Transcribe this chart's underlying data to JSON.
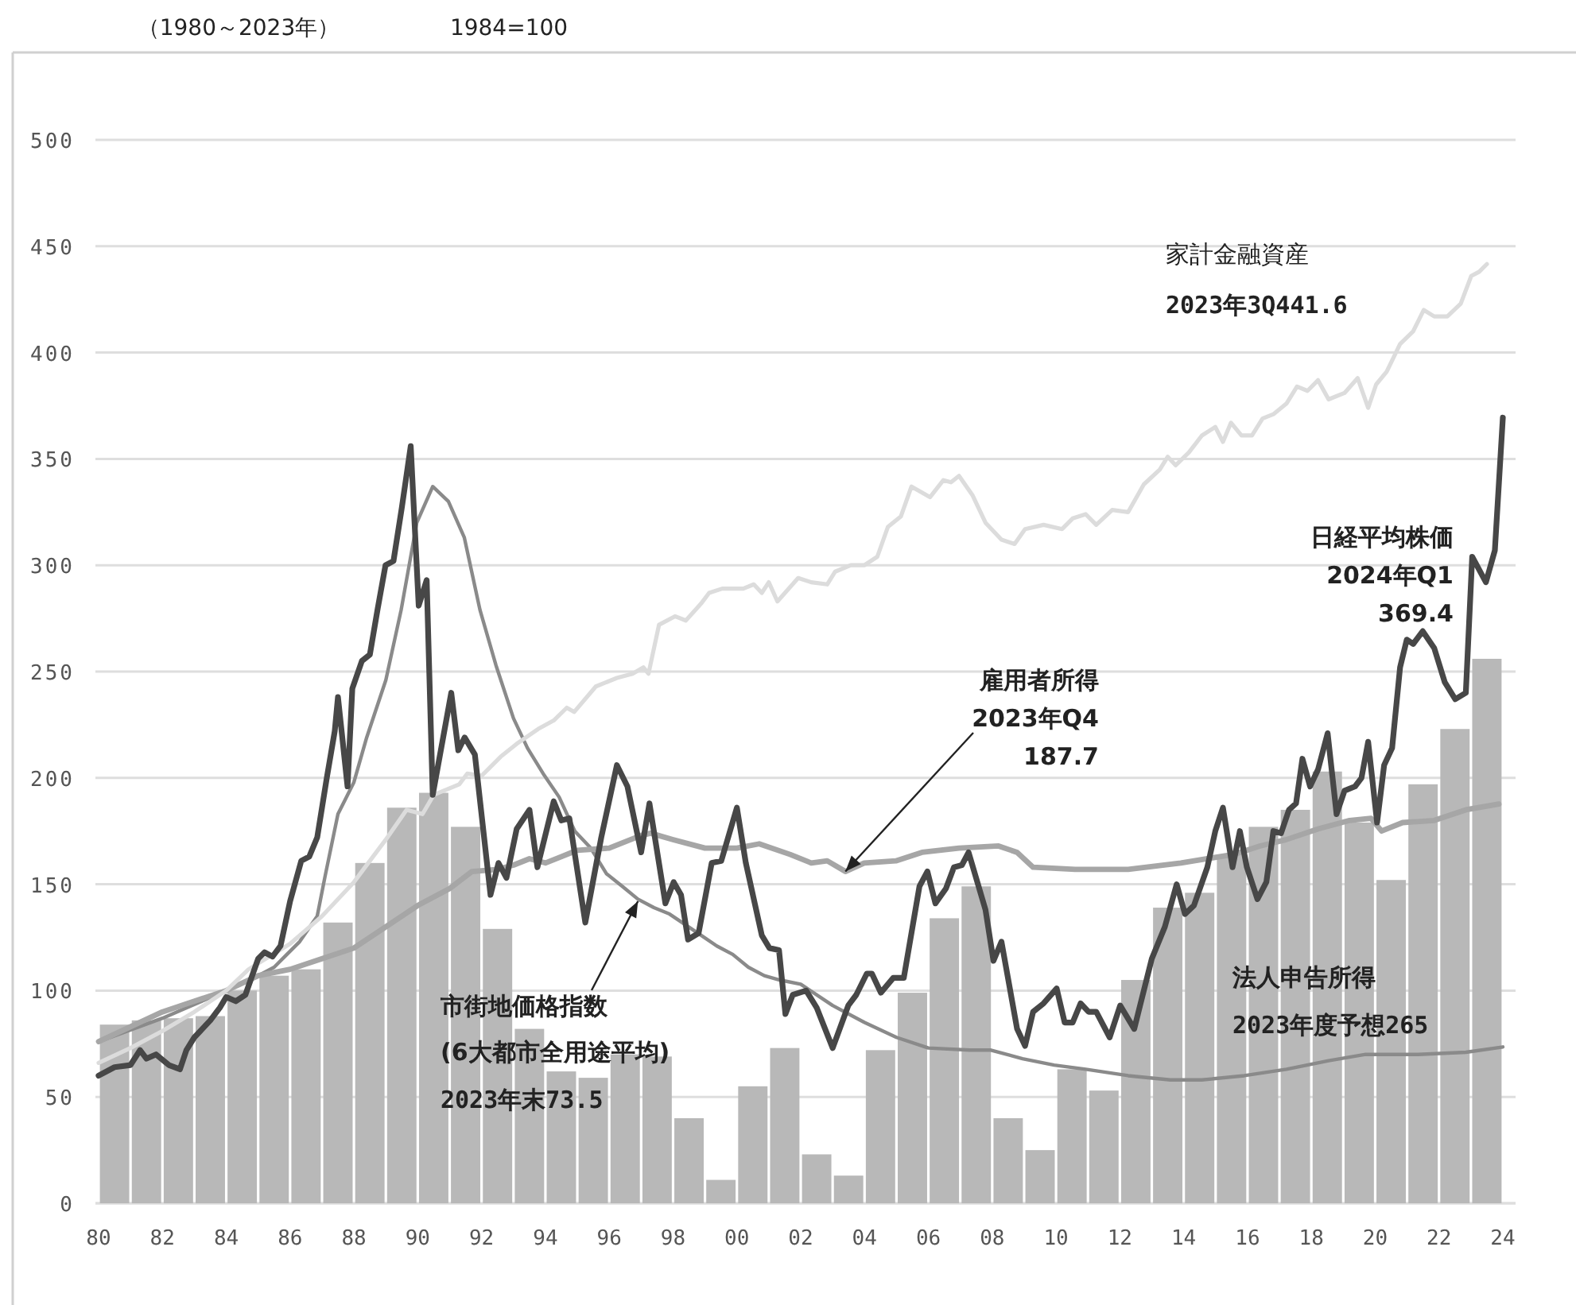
{
  "chart_data": {
    "type": "line",
    "title": "（1980～2023年）",
    "ylabel": "1984=100",
    "xlim": [
      1980,
      2024
    ],
    "ylim": [
      0,
      500
    ],
    "xticks": [
      {
        "value": 1980,
        "label": "80"
      },
      {
        "value": 1982,
        "label": "82"
      },
      {
        "value": 1984,
        "label": "84"
      },
      {
        "value": 1986,
        "label": "86"
      },
      {
        "value": 1988,
        "label": "88"
      },
      {
        "value": 1990,
        "label": "90"
      },
      {
        "value": 1992,
        "label": "92"
      },
      {
        "value": 1994,
        "label": "94"
      },
      {
        "value": 1996,
        "label": "96"
      },
      {
        "value": 1998,
        "label": "98"
      },
      {
        "value": 2000,
        "label": "00"
      },
      {
        "value": 2002,
        "label": "02"
      },
      {
        "value": 2004,
        "label": "04"
      },
      {
        "value": 2006,
        "label": "06"
      },
      {
        "value": 2008,
        "label": "08"
      },
      {
        "value": 2010,
        "label": "10"
      },
      {
        "value": 2012,
        "label": "12"
      },
      {
        "value": 2014,
        "label": "14"
      },
      {
        "value": 2016,
        "label": "16"
      },
      {
        "value": 2018,
        "label": "18"
      },
      {
        "value": 2020,
        "label": "20"
      },
      {
        "value": 2022,
        "label": "22"
      },
      {
        "value": 2024,
        "label": "24"
      }
    ],
    "yticks": [
      0,
      50,
      100,
      150,
      200,
      250,
      300,
      350,
      400,
      450,
      500
    ],
    "grid": "y",
    "series": [
      {
        "type": "bar",
        "color": "#b8b8b8",
        "x": [
          1980.5,
          1981.5,
          1982.5,
          1983.5,
          1984.5,
          1985.5,
          1986.5,
          1987.5,
          1988.5,
          1989.5,
          1990.5,
          1991.5,
          1992.5,
          1993.5,
          1994.5,
          1995.5,
          1996.5,
          1997.5,
          1998.5,
          1999.5,
          2000.5,
          2001.5,
          2002.5,
          2003.5,
          2004.5,
          2005.5,
          2006.5,
          2007.5,
          2008.5,
          2009.5,
          2010.5,
          2011.5,
          2012.5,
          2013.5,
          2014.5,
          2015.5,
          2016.5,
          2017.5,
          2018.5,
          2019.5,
          2020.5,
          2021.5,
          2022.5,
          2023.5
        ],
        "values": [
          84,
          86,
          87,
          88,
          100,
          107,
          110,
          132,
          160,
          186,
          193,
          177,
          129,
          82,
          62,
          59,
          70,
          69,
          40,
          11,
          55,
          73,
          23,
          13,
          72,
          99,
          134,
          149,
          40,
          25,
          63,
          53,
          105,
          139,
          146,
          164,
          177,
          185,
          203,
          179,
          152,
          197,
          223,
          256
        ]
      },
      {
        "color": "#8a8a8a",
        "x": [
          1980,
          1982,
          1984,
          1985,
          1985.5,
          1985.9,
          1986.3,
          1986.85,
          1987.1,
          1987.5,
          1988,
          1988.4,
          1989,
          1989.48,
          1989.97,
          1990.47,
          1990.96,
          1991.46,
          1991.95,
          1992.45,
          1993,
          1993.44,
          1993.93,
          1994.43,
          1994.92,
          1995.42,
          1995.91,
          1996.41,
          1996.9,
          1997.4,
          1997.89,
          1998.38,
          1998.88,
          1999.37,
          1999.87,
          2000.36,
          2000.86,
          2001.34,
          2002,
          2003,
          2004,
          2005,
          2006,
          2007.3,
          2007.96,
          2008.95,
          2009.94,
          2010.93,
          2012.26,
          2013.58,
          2014.57,
          2015.9,
          2017.22,
          2018.54,
          2019.7,
          2021.35,
          2022.84,
          2024
        ],
        "values": [
          76,
          87,
          100,
          107,
          111,
          117,
          123,
          135,
          154,
          183,
          198,
          219,
          246,
          279,
          320,
          337,
          330,
          313,
          279,
          253,
          228,
          214,
          202,
          191,
          175,
          167,
          155,
          149,
          143,
          139,
          136,
          131,
          126,
          121,
          117,
          111,
          107,
          105,
          103,
          93,
          85,
          78,
          73,
          72,
          72,
          68,
          65,
          63,
          60,
          58,
          58,
          60,
          63,
          67,
          70,
          70,
          71,
          73.5
        ]
      },
      {
        "color": "#a6a6a6",
        "x": [
          1980,
          1982,
          1983,
          1984,
          1985,
          1986,
          1987,
          1988,
          1989,
          1990,
          1991,
          1991.7,
          1992.5,
          1993,
          1993.5,
          1994,
          1994.5,
          1995,
          1996,
          1997,
          1997.3,
          1998,
          1999,
          2000,
          2000.7,
          2001.67,
          2002.33,
          2002.83,
          2003.4,
          2003.99,
          2004.98,
          2005.8,
          2006.96,
          2008.2,
          2008.78,
          2009.28,
          2010.6,
          2012.26,
          2013.91,
          2014.74,
          2015.56,
          2016.39,
          2017.22,
          2018.21,
          2019.2,
          2019.87,
          2020.2,
          2020.86,
          2021.85,
          2022.84,
          2023.875
        ],
        "values": [
          76,
          90,
          95,
          100,
          107,
          110,
          115,
          120,
          130,
          140,
          148,
          156,
          157,
          159,
          162,
          160,
          163,
          166,
          167,
          173,
          174,
          171,
          167,
          167,
          169,
          164,
          160,
          161,
          156,
          160,
          161,
          165,
          167,
          168,
          165,
          158,
          157,
          157,
          160,
          162,
          164,
          168,
          171,
          176,
          180,
          181,
          175,
          179,
          180,
          185,
          187.7
        ]
      },
      {
        "color": "#dcdcdc",
        "x": [
          1980,
          1981,
          1982,
          1983,
          1984,
          1984.7,
          1986,
          1987,
          1988,
          1989,
          1989.65,
          1990.15,
          1990.5,
          1991.3,
          1991.55,
          1992,
          1992.6,
          1993.1,
          1993.77,
          1994.26,
          1994.67,
          1994.9,
          1995.58,
          1996.24,
          1996.73,
          1997.07,
          1997.23,
          1997.56,
          1998.06,
          1998.4,
          1998.88,
          1999.13,
          1999.54,
          2000.2,
          2000.53,
          2000.78,
          2001.0,
          2001.27,
          2001.92,
          2002.33,
          2002.83,
          2003.08,
          2003.57,
          2003.99,
          2004.4,
          2004.73,
          2005.14,
          2005.47,
          2006.05,
          2006.47,
          2006.71,
          2006.96,
          2007.38,
          2007.79,
          2008.29,
          2008.7,
          2009.03,
          2009.61,
          2010.19,
          2010.52,
          2010.93,
          2011.26,
          2011.76,
          2012.26,
          2012.75,
          2013.25,
          2013.5,
          2013.75,
          2014.16,
          2014.57,
          2014.99,
          2015.23,
          2015.48,
          2015.81,
          2016.14,
          2016.47,
          2016.81,
          2017.22,
          2017.55,
          2017.88,
          2018.21,
          2018.54,
          2019.04,
          2019.45,
          2019.78,
          2020.03,
          2020.36,
          2020.78,
          2021.19,
          2021.52,
          2021.85,
          2022.26,
          2022.68,
          2023.01,
          2023.26,
          2023.5
        ],
        "values": [
          66,
          73,
          81,
          90,
          100,
          110,
          122,
          135,
          151,
          171,
          185,
          183,
          192,
          197,
          202,
          201,
          210,
          216,
          223,
          227,
          233,
          231,
          243,
          247,
          249,
          252,
          249,
          272,
          276,
          274,
          282,
          287,
          289,
          289,
          291,
          287,
          292,
          283,
          294,
          292,
          291,
          297,
          300,
          300,
          304,
          318,
          323,
          337,
          332,
          340,
          339,
          342,
          333,
          320,
          312,
          310,
          317,
          319,
          317,
          322,
          324,
          319,
          326,
          325,
          338,
          345,
          351,
          347,
          353,
          361,
          365,
          358,
          367,
          361,
          361,
          369,
          371,
          376,
          384,
          382,
          387,
          378,
          381,
          388,
          374,
          385,
          391,
          404,
          410,
          420,
          417,
          417,
          423,
          436,
          438,
          441.6
        ]
      },
      {
        "color": "#474747",
        "x": [
          1980,
          1980.5,
          1981,
          1981.3,
          1981.5,
          1981.8,
          1982.2,
          1982.55,
          1982.75,
          1983,
          1983.5,
          1983.8,
          1984,
          1984.3,
          1984.6,
          1985,
          1985.2,
          1985.45,
          1985.7,
          1986,
          1986.35,
          1986.6,
          1986.85,
          1987.15,
          1987.4,
          1987.5,
          1987.8,
          1987.95,
          1988.25,
          1988.5,
          1988.75,
          1988.99,
          1989.24,
          1989.5,
          1989.78,
          1990.03,
          1990.28,
          1990.47,
          1991.05,
          1991.27,
          1991.47,
          1991.79,
          1992.28,
          1992.53,
          1992.78,
          1993.1,
          1993.5,
          1993.75,
          1994.26,
          1994.5,
          1994.75,
          1995.25,
          1995.75,
          1996.24,
          1996.57,
          1997,
          1997.26,
          1997.76,
          1998.02,
          1998.25,
          1998.47,
          1998.8,
          1999.21,
          1999.51,
          2000,
          2000.28,
          2000.78,
          2001.02,
          2001.32,
          2001.52,
          2001.75,
          2002.17,
          2002.5,
          2003,
          2003.49,
          2003.74,
          2004.07,
          2004.23,
          2004.51,
          2004.9,
          2005.23,
          2005.72,
          2005.97,
          2006.22,
          2006.55,
          2006.8,
          2007.05,
          2007.26,
          2007.79,
          2008.04,
          2008.29,
          2008.78,
          2009.03,
          2009.28,
          2009.61,
          2010.02,
          2010.27,
          2010.52,
          2010.77,
          2011.02,
          2011.26,
          2011.68,
          2012.01,
          2012.45,
          2013,
          2013.41,
          2013.78,
          2014.04,
          2014.32,
          2014.74,
          2014.99,
          2015.23,
          2015.53,
          2015.76,
          2015.98,
          2016.31,
          2016.59,
          2016.81,
          2017.05,
          2017.3,
          2017.52,
          2017.72,
          2017.96,
          2018.21,
          2018.51,
          2018.79,
          2019.04,
          2019.37,
          2019.57,
          2019.78,
          2020.06,
          2020.28,
          2020.53,
          2020.78,
          2020.99,
          2021.19,
          2021.49,
          2021.85,
          2022.18,
          2022.51,
          2022.84,
          2023.04,
          2023.47,
          2023.75,
          2024
        ],
        "values": [
          60,
          64,
          65,
          72,
          68,
          70,
          65,
          63,
          72,
          78,
          86,
          92,
          97,
          95,
          98,
          115,
          118,
          116,
          121,
          142,
          161,
          163,
          172,
          200,
          222,
          238,
          196,
          242,
          255,
          258,
          280,
          300,
          302,
          327,
          356,
          281,
          293,
          192,
          240,
          213,
          219,
          211,
          145,
          160,
          153,
          176,
          185,
          158,
          189,
          180,
          181,
          132,
          172,
          206,
          196,
          165,
          188,
          141,
          151,
          145,
          124,
          127,
          160,
          161,
          186,
          160,
          126,
          120,
          119,
          89,
          98,
          100,
          92,
          73,
          93,
          98,
          108,
          108,
          99,
          106,
          106,
          149,
          156,
          141,
          148,
          158,
          159,
          165,
          138,
          114,
          123,
          82,
          74,
          90,
          94,
          101,
          85,
          85,
          94,
          90,
          90,
          78,
          93,
          82,
          115,
          130,
          150,
          136,
          140,
          158,
          175,
          186,
          158,
          175,
          158,
          143,
          151,
          175,
          174,
          185,
          188,
          209,
          196,
          204,
          221,
          183,
          194,
          196,
          200,
          217,
          179,
          206,
          214,
          252,
          265,
          263,
          269,
          261,
          245,
          237,
          240,
          304,
          292,
          307,
          369.4
        ]
      }
    ],
    "annotations": [
      "家計金融資産",
      "2023年3Q441.6",
      "日経平均株価",
      "2024年Q1",
      "369.4",
      "雇用者所得",
      {
        "text": "2023年Q4",
        "x": 2003.4,
        "y": 156
      },
      "187.7",
      {
        "text": "市街地価格指数",
        "x": 1996.9,
        "y": 142
      },
      "(6大都市全用途平均)",
      "2023年末73.5",
      "法人申告所得",
      "2023年度予想265"
    ]
  }
}
